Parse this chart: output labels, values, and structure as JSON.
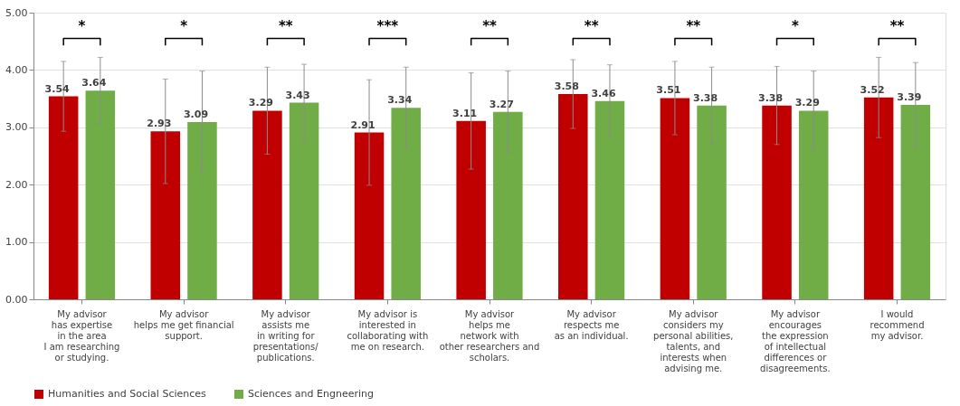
{
  "chart_data": {
    "type": "bar",
    "categories": [
      "My advisor\nhas expertise\nin the area\nI am researching\nor studying.",
      "My advisor\nhelps me get financial\nsupport.",
      "My advisor\nassists me\nin writing for\npresentations/\npublications.",
      "My advisor is\ninterested in\ncollaborating with\nme on research.",
      "My advisor\nhelps me\nnetwork with\nother researchers and\nscholars.",
      "My advisor\nrespects me\nas an individual.",
      "My advisor\nconsiders my\npersonal abilities,\ntalents, and\ninterests when\nadvising me.",
      "My advisor\nencourages\nthe expression\nof intellectual\ndifferences or\ndisagreements.",
      "I would\nrecommend\nmy advisor."
    ],
    "series": [
      {
        "name": "Humanities and Social Sciences",
        "color": "#c00000",
        "values": [
          3.54,
          2.93,
          3.29,
          2.91,
          3.11,
          3.58,
          3.51,
          3.38,
          3.52
        ],
        "errors": [
          0.61,
          0.91,
          0.76,
          0.92,
          0.84,
          0.6,
          0.64,
          0.68,
          0.7
        ]
      },
      {
        "name": "Sciences and Engneering",
        "color": "#70ad47",
        "values": [
          3.64,
          3.09,
          3.43,
          3.34,
          3.27,
          3.46,
          3.38,
          3.29,
          3.39
        ],
        "errors": [
          0.58,
          0.89,
          0.67,
          0.71,
          0.71,
          0.63,
          0.67,
          0.69,
          0.74
        ]
      }
    ],
    "ylim": [
      0,
      5
    ],
    "yticks": [
      {
        "value": 0,
        "label": "0.00"
      },
      {
        "value": 1,
        "label": "1.00"
      },
      {
        "value": 2,
        "label": "2.00"
      },
      {
        "value": 3,
        "label": "3.00"
      },
      {
        "value": 4,
        "label": "4.00"
      },
      {
        "value": 5,
        "label": "5.00"
      }
    ],
    "annotations": [
      "*",
      "*",
      "**",
      "***",
      "**",
      "**",
      "**",
      "*",
      "**"
    ],
    "data_labels": true,
    "grid": "y",
    "legend": "bottom"
  }
}
